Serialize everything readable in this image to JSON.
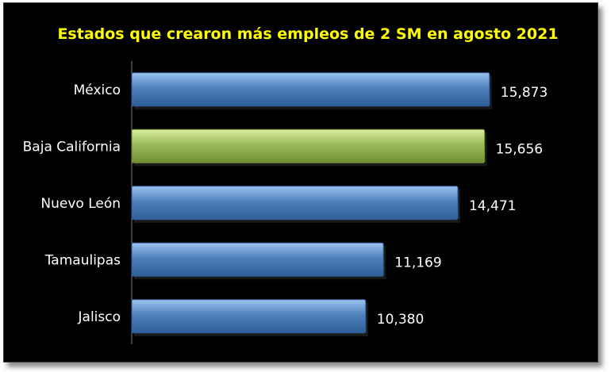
{
  "colors": {
    "background": "#000000",
    "title": "#ffff00",
    "text": "#ffffff",
    "bar_default": "#4f81bd",
    "bar_highlight": "#9bbb59",
    "axis": "#7f7f7f"
  },
  "chart_data": {
    "type": "bar",
    "orientation": "horizontal",
    "title": "Estados que crearon más empleos de 2 SM en agosto 2021",
    "categories": [
      "México",
      "Baja California",
      "Nuevo León",
      "Tamaulipas",
      "Jalisco"
    ],
    "values": [
      15873,
      15656,
      14471,
      11169,
      10380
    ],
    "value_labels": [
      "15,873",
      "15,656",
      "14,471",
      "11,169",
      "10,380"
    ],
    "highlight": [
      "Baja California"
    ],
    "xlim": [
      0,
      20000
    ],
    "grid": false,
    "legend": "none"
  }
}
